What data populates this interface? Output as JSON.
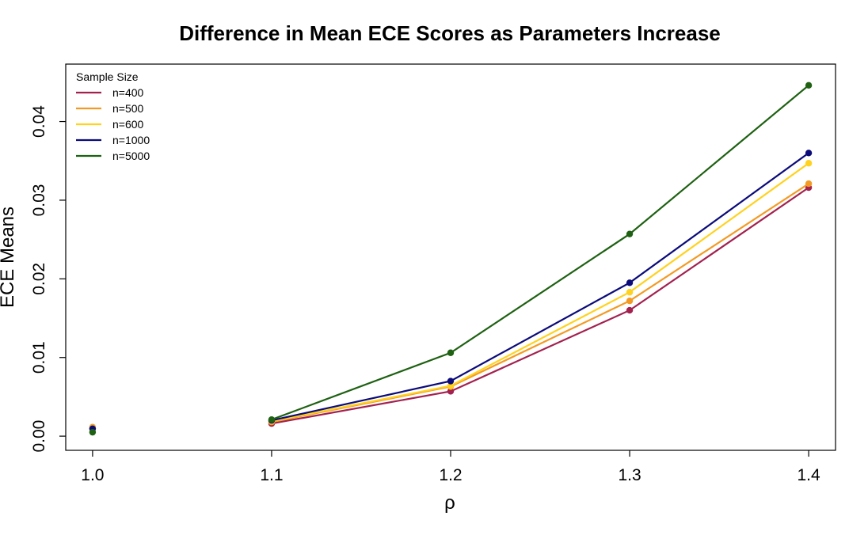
{
  "chart_data": {
    "type": "line",
    "title": "Difference in Mean ECE Scores as Parameters Increase",
    "xlabel": "ρ",
    "ylabel": "ECE Means",
    "x": [
      1.0,
      1.1,
      1.2,
      1.3,
      1.4
    ],
    "x_tick_labels": [
      "1.0",
      "1.1",
      "1.2",
      "1.3",
      "1.4"
    ],
    "y_ticks": [
      0.0,
      0.01,
      0.02,
      0.03,
      0.04
    ],
    "y_tick_labels": [
      "0.00",
      "0.01",
      "0.02",
      "0.03",
      "0.04"
    ],
    "xlim": [
      0.985,
      1.415
    ],
    "ylim": [
      -0.0018,
      0.0473
    ],
    "grid": false,
    "legend": {
      "title": "Sample Size",
      "position": "top-left"
    },
    "series": [
      {
        "name": "n=400",
        "color": "#A2214F",
        "values": [
          0.00095,
          0.0016,
          0.0057,
          0.016,
          0.0316
        ]
      },
      {
        "name": "n=500",
        "color": "#F39A24",
        "values": [
          0.00115,
          0.0018,
          0.0063,
          0.0172,
          0.0321
        ]
      },
      {
        "name": "n=600",
        "color": "#FFD21F",
        "values": [
          0.001,
          0.0019,
          0.0064,
          0.0183,
          0.0347
        ]
      },
      {
        "name": "n=1000",
        "color": "#0B0B7A",
        "values": [
          0.00095,
          0.002,
          0.007,
          0.0195,
          0.036
        ]
      },
      {
        "name": "n=5000",
        "color": "#1E6112",
        "values": [
          0.0005,
          0.0021,
          0.0106,
          0.0257,
          0.0446
        ]
      }
    ]
  }
}
